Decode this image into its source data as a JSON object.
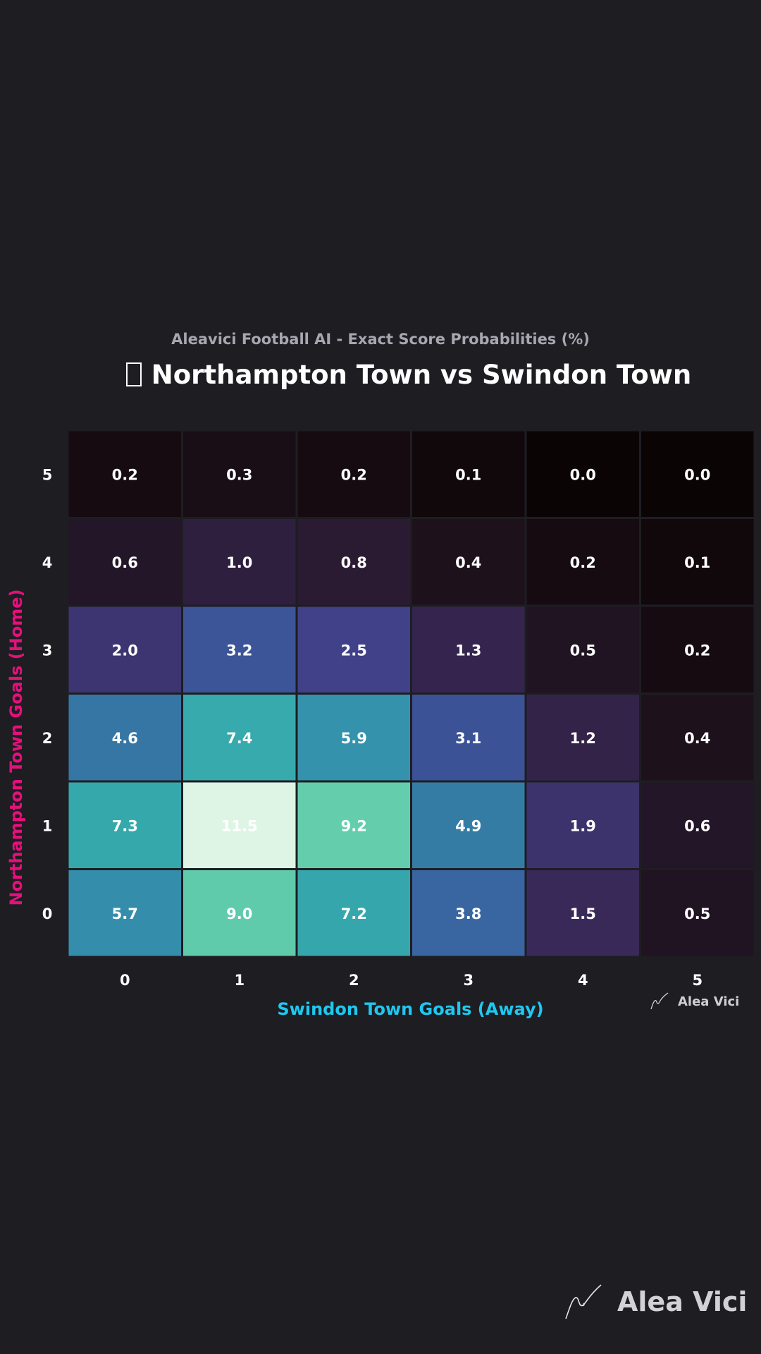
{
  "header": {
    "subtitle": "Aleavici Football AI - Exact Score Probabilities (%)",
    "title": "Northampton Town vs Swindon Town"
  },
  "chart_data": {
    "type": "heatmap",
    "title": "Northampton Town vs Swindon Town",
    "subtitle": "Aleavici Football AI - Exact Score Probabilities (%)",
    "xlabel": "Swindon Town Goals (Away)",
    "ylabel": "Northampton Town Goals (Home)",
    "x_categories": [
      "0",
      "1",
      "2",
      "3",
      "4",
      "5"
    ],
    "y_categories": [
      "0",
      "1",
      "2",
      "3",
      "4",
      "5"
    ],
    "values": [
      [
        5.7,
        9.0,
        7.2,
        3.8,
        1.5,
        0.5
      ],
      [
        7.3,
        11.5,
        9.2,
        4.9,
        1.9,
        0.6
      ],
      [
        4.6,
        7.4,
        5.9,
        3.1,
        1.2,
        0.4
      ],
      [
        2.0,
        3.2,
        2.5,
        1.3,
        0.5,
        0.2
      ],
      [
        0.6,
        1.0,
        0.8,
        0.4,
        0.2,
        0.1
      ],
      [
        0.2,
        0.3,
        0.2,
        0.1,
        0.0,
        0.0
      ]
    ],
    "value_range": [
      0,
      11.5
    ],
    "colormap": "mako",
    "colors": {
      "background": "#1e1d22",
      "xlabel": "#1ec8f0",
      "ylabel": "#e5107c",
      "cell_text": "#ffffff"
    }
  },
  "branding": {
    "small_label": "Alea Vici",
    "large_label": "Alea Vici",
    "logo_icon": "signature-icon"
  }
}
